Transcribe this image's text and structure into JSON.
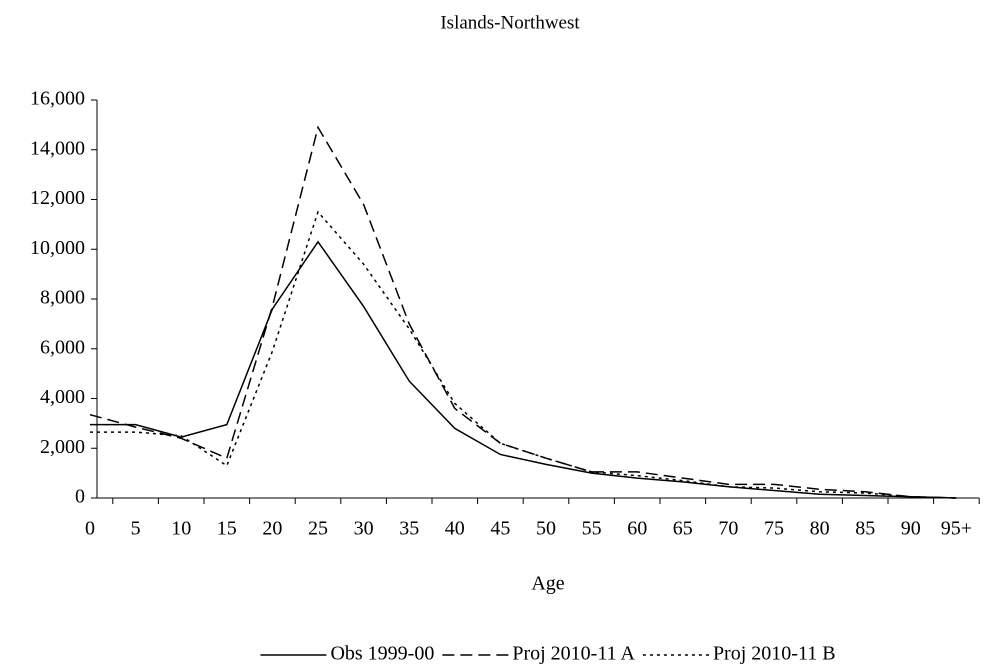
{
  "chart_data": {
    "type": "line",
    "title": "Islands-Northwest",
    "x_label": "Age",
    "categories": [
      "0",
      "5",
      "10",
      "15",
      "20",
      "25",
      "30",
      "35",
      "40",
      "45",
      "50",
      "55",
      "60",
      "65",
      "70",
      "75",
      "80",
      "85",
      "90",
      "95+"
    ],
    "series": [
      {
        "name": "Obs 1999-00",
        "color": "#000000",
        "dash": "none",
        "values": [
          2950,
          2950,
          2450,
          2950,
          7600,
          10300,
          7700,
          4700,
          2800,
          1750,
          1350,
          1000,
          800,
          650,
          450,
          300,
          150,
          100,
          50,
          0
        ]
      },
      {
        "name": "Proj 2010-11 A",
        "color": "#000000",
        "dash": "12,6",
        "values": [
          3350,
          2850,
          2400,
          1600,
          7700,
          14900,
          11800,
          7000,
          3600,
          2200,
          1600,
          1050,
          1050,
          800,
          550,
          550,
          350,
          250,
          50,
          0
        ]
      },
      {
        "name": "Proj 2010-11 B",
        "color": "#000000",
        "dash": "3,4",
        "values": [
          2650,
          2650,
          2500,
          1300,
          5900,
          11500,
          9400,
          6800,
          3800,
          2200,
          1600,
          1050,
          900,
          700,
          450,
          400,
          250,
          200,
          50,
          0
        ]
      }
    ],
    "ylim": [
      0,
      16000
    ],
    "yticks": [
      0,
      {
        "value": 2000,
        "label": "2,000"
      },
      {
        "value": 4000,
        "label": "4,000"
      },
      {
        "value": 6000,
        "label": "6,000"
      },
      {
        "value": 8000,
        "label": "8,000"
      },
      {
        "value": 10000,
        "label": "10,000"
      },
      {
        "value": 12000,
        "label": "12,000"
      },
      {
        "value": 14000,
        "label": "14,000"
      },
      {
        "value": 16000,
        "label": "16,000"
      }
    ],
    "grid": false,
    "legend": "bottom"
  }
}
